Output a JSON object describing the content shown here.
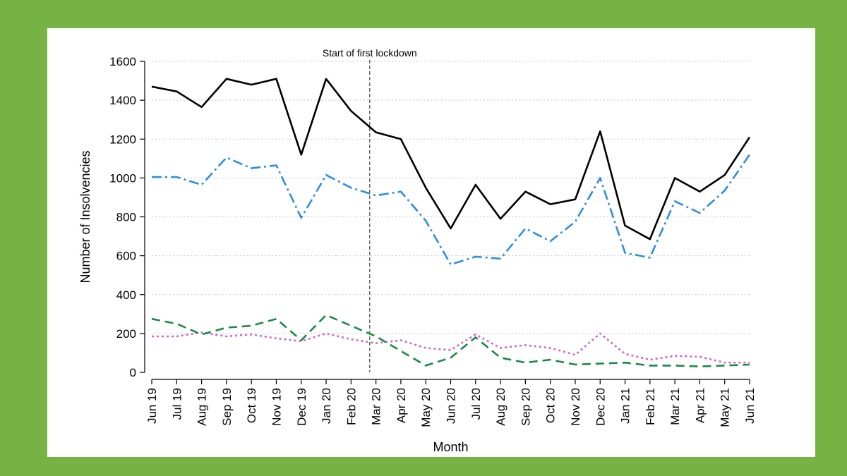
{
  "chart_data": {
    "type": "line",
    "xlabel": "Month",
    "ylabel": "Number of Insolvencies",
    "ylim": [
      0,
      1600
    ],
    "yticks": [
      0,
      200,
      400,
      600,
      800,
      1000,
      1200,
      1400,
      1600
    ],
    "grid": "horizontal dotted",
    "categories": [
      "Jun 19",
      "Jul 19",
      "Aug 19",
      "Sep 19",
      "Oct 19",
      "Nov 19",
      "Dec 19",
      "Jan 20",
      "Feb 20",
      "Mar 20",
      "Apr 20",
      "May 20",
      "Jun 20",
      "Jul 20",
      "Aug 20",
      "Sep 20",
      "Oct 20",
      "Nov 20",
      "Dec 20",
      "Jan 21",
      "Feb 21",
      "Mar 21",
      "Apr 21",
      "May 21",
      "Jun 21"
    ],
    "annotation": {
      "text": "Start of first lockdown",
      "x_between": [
        "Feb 20",
        "Mar 20"
      ]
    },
    "series": [
      {
        "color": "#000000",
        "dash": "solid",
        "values": [
          1470,
          1445,
          1365,
          1510,
          1480,
          1510,
          1120,
          1510,
          1345,
          1235,
          1200,
          950,
          740,
          965,
          790,
          930,
          865,
          890,
          1240,
          755,
          685,
          1000,
          930,
          1015,
          1210
        ]
      },
      {
        "color": "#2e8de0",
        "dash": "dashdot",
        "values": [
          1005,
          1005,
          965,
          1105,
          1050,
          1065,
          795,
          1015,
          950,
          910,
          930,
          780,
          555,
          595,
          585,
          740,
          675,
          775,
          1000,
          615,
          590,
          880,
          820,
          935,
          1120
        ]
      },
      {
        "color": "#cc66cc",
        "dash": "dotted",
        "values": [
          185,
          185,
          205,
          185,
          195,
          175,
          160,
          200,
          170,
          150,
          165,
          125,
          115,
          195,
          125,
          140,
          125,
          90,
          200,
          95,
          65,
          85,
          80,
          50,
          50
        ]
      },
      {
        "color": "#1a8a45",
        "dash": "dashed",
        "values": [
          275,
          250,
          195,
          230,
          240,
          275,
          165,
          295,
          240,
          185,
          110,
          35,
          75,
          180,
          75,
          50,
          65,
          40,
          45,
          50,
          35,
          35,
          30,
          35,
          40
        ]
      }
    ]
  }
}
